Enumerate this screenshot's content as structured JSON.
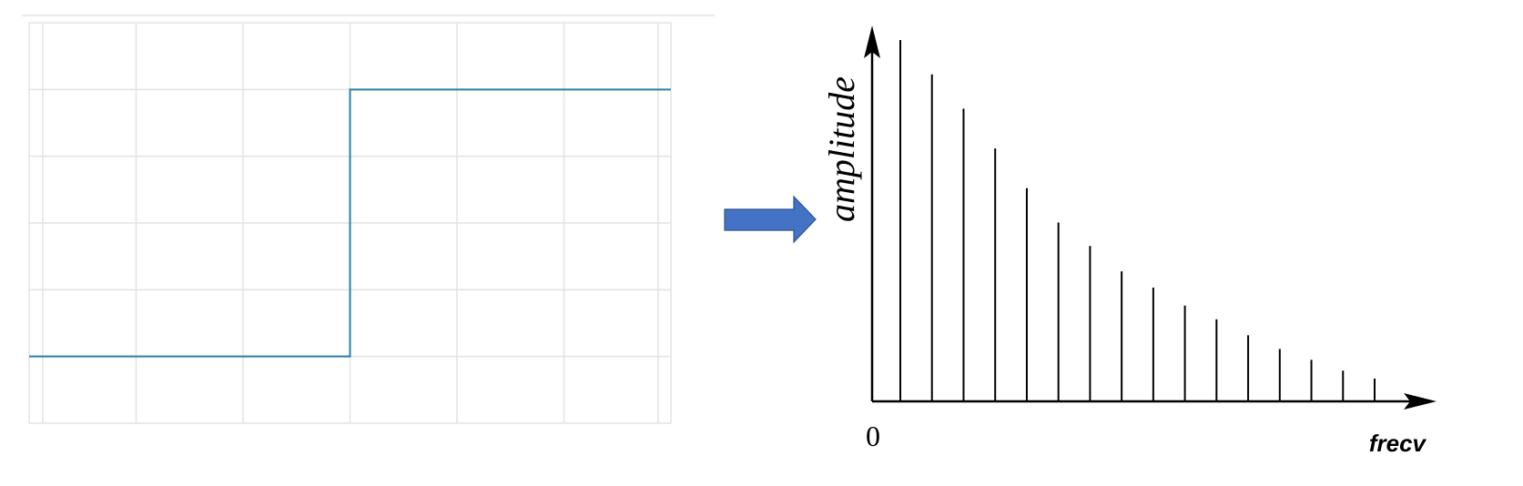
{
  "colors": {
    "grid": "#e3e3e3",
    "step_signal": "#2e7ca7",
    "arrow_fill": "#4472c4",
    "arrow_stroke": "#2f528f",
    "axes": "#000000"
  },
  "step_chart": {
    "type": "line",
    "grid": true,
    "grid_columns": 6,
    "grid_rows": 6,
    "x_range": [
      0,
      6
    ],
    "y_range": [
      0,
      6
    ],
    "series": [
      {
        "x": [
          0,
          3,
          3,
          6
        ],
        "y": [
          1,
          1,
          5,
          5
        ]
      }
    ]
  },
  "transform_arrow": {
    "icon": "right-arrow-icon"
  },
  "spectrum_chart": {
    "type": "bar",
    "ylabel": "amplitude",
    "xlabel": "frecv",
    "origin_label": "0",
    "values": [
      1.0,
      0.905,
      0.81,
      0.7,
      0.59,
      0.495,
      0.43,
      0.36,
      0.315,
      0.265,
      0.227,
      0.183,
      0.145,
      0.115,
      0.085,
      0.063
    ]
  }
}
